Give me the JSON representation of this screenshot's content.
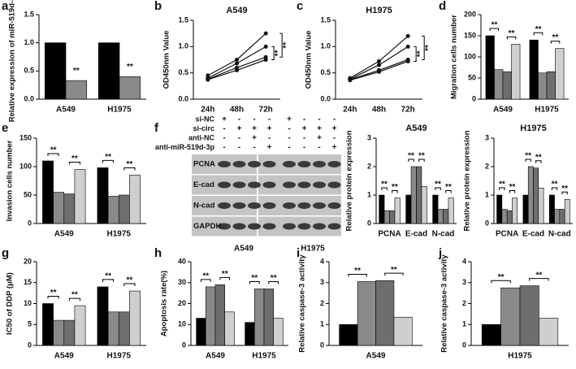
{
  "chart_data": [
    {
      "type": "bar",
      "panel_label": "a",
      "ylabel": "Relative expression of miR-519d-3p",
      "categories": [
        "A549",
        "H1975"
      ],
      "series": [
        {
          "color": "#000000",
          "values": [
            1.0,
            1.0
          ]
        },
        {
          "color": "#8a8a8a",
          "values": [
            0.33,
            0.4
          ]
        }
      ],
      "ylim": [
        0,
        1.5
      ],
      "yticks": [
        {
          "value": 0,
          "label": "0.0"
        },
        {
          "value": 0.5,
          "label": "0.5"
        },
        {
          "value": 1,
          "label": "1.0"
        },
        {
          "value": 1.5,
          "label": "1.5"
        }
      ],
      "annotations": [
        "**",
        "**"
      ]
    },
    {
      "type": "line",
      "panel_label": "b",
      "title": "A549",
      "ylabel": "OD450nm Value",
      "categories": [
        "24h",
        "48h",
        "72h"
      ],
      "series": [
        {
          "color": "#111111",
          "values": [
            0.45,
            0.75,
            1.25
          ]
        },
        {
          "color": "#111111",
          "values": [
            0.4,
            0.68,
            1.0
          ]
        },
        {
          "color": "#111111",
          "values": [
            0.38,
            0.6,
            0.8
          ]
        },
        {
          "color": "#111111",
          "values": [
            0.37,
            0.55,
            0.75
          ]
        }
      ],
      "ylim": [
        0,
        1.5
      ],
      "yticks": [
        {
          "value": 0,
          "label": "0.0"
        },
        {
          "value": 0.5,
          "label": "0.5"
        },
        {
          "value": 1,
          "label": "1.0"
        },
        {
          "value": 1.5,
          "label": "1.5"
        }
      ],
      "annotations": [
        "**",
        "**"
      ]
    },
    {
      "type": "line",
      "panel_label": "c",
      "title": "H1975",
      "ylabel": "OD450nm Value",
      "categories": [
        "24h",
        "48h",
        "72h"
      ],
      "series": [
        {
          "color": "#111111",
          "values": [
            0.4,
            0.72,
            1.2
          ]
        },
        {
          "color": "#111111",
          "values": [
            0.38,
            0.65,
            1.0
          ]
        },
        {
          "color": "#111111",
          "values": [
            0.37,
            0.55,
            0.75
          ]
        },
        {
          "color": "#111111",
          "values": [
            0.36,
            0.52,
            0.72
          ]
        }
      ],
      "ylim": [
        0,
        1.5
      ],
      "yticks": [
        {
          "value": 0,
          "label": "0.0"
        },
        {
          "value": 0.5,
          "label": "0.5"
        },
        {
          "value": 1,
          "label": "1.0"
        },
        {
          "value": 1.5,
          "label": "1.5"
        }
      ],
      "annotations": [
        "**",
        "**"
      ]
    },
    {
      "type": "bar",
      "panel_label": "d",
      "ylabel": "Migration cells number",
      "categories": [
        "A549",
        "H1975"
      ],
      "series": [
        {
          "color": "#000000",
          "values": [
            150,
            140
          ]
        },
        {
          "color": "#8a8a8a",
          "values": [
            70,
            62
          ]
        },
        {
          "color": "#6e6e6e",
          "values": [
            65,
            65
          ]
        },
        {
          "color": "#cfcfcf",
          "values": [
            130,
            120
          ]
        }
      ],
      "ylim": [
        0,
        200
      ],
      "yticks": [
        0,
        50,
        100,
        150,
        200
      ],
      "annotations": [
        "**",
        "**",
        "**",
        "**"
      ]
    },
    {
      "type": "bar",
      "panel_label": "e",
      "ylabel": "Invasion cells number",
      "categories": [
        "A549",
        "H1975"
      ],
      "series": [
        {
          "color": "#000000",
          "values": [
            110,
            98
          ]
        },
        {
          "color": "#8a8a8a",
          "values": [
            55,
            48
          ]
        },
        {
          "color": "#6e6e6e",
          "values": [
            52,
            50
          ]
        },
        {
          "color": "#cfcfcf",
          "values": [
            95,
            85
          ]
        }
      ],
      "ylim": [
        0,
        150
      ],
      "yticks": [
        0,
        50,
        100,
        150
      ],
      "annotations": [
        "**",
        "**",
        "**",
        "**"
      ]
    },
    {
      "type": "bar",
      "title": "A549",
      "ylabel": "Relative protein expression",
      "categories": [
        "PCNA",
        "E-cad",
        "N-cad"
      ],
      "series": [
        {
          "color": "#000000",
          "values": [
            1,
            1,
            1
          ]
        },
        {
          "color": "#8a8a8a",
          "values": [
            0.45,
            2.0,
            0.5
          ]
        },
        {
          "color": "#6e6e6e",
          "values": [
            0.45,
            2.0,
            0.5
          ]
        },
        {
          "color": "#cfcfcf",
          "values": [
            0.9,
            1.3,
            0.9
          ]
        }
      ],
      "ylim": [
        0,
        3
      ],
      "yticks": [
        0,
        1,
        2,
        3
      ],
      "annotations": [
        "**",
        "**",
        "**",
        "**",
        "**",
        "**"
      ]
    },
    {
      "type": "bar",
      "title": "H1975",
      "ylabel": "Relative protein expression",
      "categories": [
        "PCNA",
        "E-cad",
        "N-cad"
      ],
      "series": [
        {
          "color": "#000000",
          "values": [
            1,
            1,
            1
          ]
        },
        {
          "color": "#8a8a8a",
          "values": [
            0.5,
            2.0,
            0.5
          ]
        },
        {
          "color": "#6e6e6e",
          "values": [
            0.45,
            1.95,
            0.5
          ]
        },
        {
          "color": "#cfcfcf",
          "values": [
            0.9,
            1.25,
            0.85
          ]
        }
      ],
      "ylim": [
        0,
        3
      ],
      "yticks": [
        0,
        1,
        2,
        3
      ],
      "annotations": [
        "**",
        "**",
        "**",
        "**",
        "**",
        "**"
      ]
    },
    {
      "type": "bar",
      "panel_label": "g",
      "ylabel": "IC50 of DDP (μM)",
      "categories": [
        "A549",
        "H1975"
      ],
      "series": [
        {
          "color": "#000000",
          "values": [
            10,
            14
          ]
        },
        {
          "color": "#8a8a8a",
          "values": [
            6,
            8
          ]
        },
        {
          "color": "#6e6e6e",
          "values": [
            6,
            8
          ]
        },
        {
          "color": "#cfcfcf",
          "values": [
            9.5,
            13
          ]
        }
      ],
      "ylim": [
        0,
        20
      ],
      "yticks": [
        0,
        5,
        10,
        15,
        20
      ],
      "annotations": [
        "**",
        "**",
        "**",
        "**"
      ]
    },
    {
      "type": "bar",
      "panel_label": "h",
      "ylabel": "Apoptosis rate(%)",
      "categories": [
        "A549",
        "H1975"
      ],
      "series": [
        {
          "color": "#000000",
          "values": [
            13,
            11
          ]
        },
        {
          "color": "#8a8a8a",
          "values": [
            28,
            27
          ]
        },
        {
          "color": "#6e6e6e",
          "values": [
            29,
            27
          ]
        },
        {
          "color": "#cfcfcf",
          "values": [
            16,
            13
          ]
        }
      ],
      "ylim": [
        0,
        40
      ],
      "yticks": [
        0,
        10,
        20,
        30,
        40
      ],
      "annotations": [
        "**",
        "**",
        "**",
        "**"
      ]
    },
    {
      "type": "bar",
      "panel_label": "i",
      "ylabel": "Relative caspase-3 activity",
      "categories": [
        "A549"
      ],
      "series": [
        {
          "color": "#000000",
          "values": [
            1
          ]
        },
        {
          "color": "#8a8a8a",
          "values": [
            3.05
          ]
        },
        {
          "color": "#6e6e6e",
          "values": [
            3.1
          ]
        },
        {
          "color": "#cfcfcf",
          "values": [
            1.35
          ]
        }
      ],
      "ylim": [
        0,
        4
      ],
      "yticks": [
        0,
        1,
        2,
        3,
        4
      ],
      "annotations": [
        "**",
        "**"
      ]
    },
    {
      "type": "bar",
      "panel_label": "j",
      "ylabel": "Relative caspase-3 activity",
      "categories": [
        "H1975"
      ],
      "series": [
        {
          "color": "#000000",
          "values": [
            1
          ]
        },
        {
          "color": "#8a8a8a",
          "values": [
            2.75
          ]
        },
        {
          "color": "#6e6e6e",
          "values": [
            2.85
          ]
        },
        {
          "color": "#cfcfcf",
          "values": [
            1.3
          ]
        }
      ],
      "ylim": [
        0,
        4
      ],
      "yticks": [
        0,
        1,
        2,
        3,
        4
      ],
      "annotations": [
        "**",
        "**"
      ]
    }
  ],
  "blot": {
    "panel_label": "f",
    "conditions": [
      "si-NC",
      "si-circ",
      "anti-NC",
      "anti-miR-519d-3p"
    ],
    "signs": [
      [
        "+",
        "-",
        "-",
        "-",
        "+",
        "-",
        "-",
        "-"
      ],
      [
        "-",
        "+",
        "+",
        "+",
        "-",
        "+",
        "+",
        "+"
      ],
      [
        "-",
        "-",
        "+",
        "-",
        "-",
        "-",
        "+",
        "-"
      ],
      [
        "-",
        "-",
        "-",
        "+",
        "-",
        "-",
        "-",
        "+"
      ]
    ],
    "proteins": [
      "PCNA",
      "E-cad",
      "N-cad",
      "GAPDH"
    ],
    "cells": [
      "A549",
      "H1975"
    ]
  }
}
